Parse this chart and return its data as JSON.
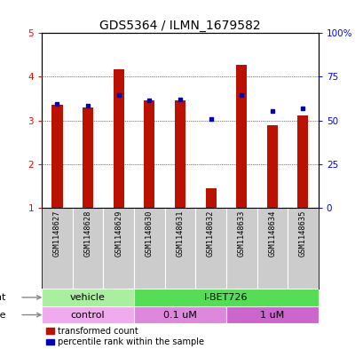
{
  "title": "GDS5364 / ILMN_1679582",
  "samples": [
    "GSM1148627",
    "GSM1148628",
    "GSM1148629",
    "GSM1148630",
    "GSM1148631",
    "GSM1148632",
    "GSM1148633",
    "GSM1148634",
    "GSM1148635"
  ],
  "red_values": [
    3.35,
    3.3,
    4.18,
    3.46,
    3.46,
    1.45,
    4.28,
    2.88,
    3.12
  ],
  "blue_values": [
    3.37,
    3.33,
    3.58,
    3.45,
    3.47,
    3.03,
    3.58,
    3.22,
    3.28
  ],
  "ylim_left": [
    1,
    5
  ],
  "ylim_right": [
    0,
    100
  ],
  "yticks_left": [
    1,
    2,
    3,
    4,
    5
  ],
  "yticks_right": [
    0,
    25,
    50,
    75,
    100
  ],
  "ytick_labels_right": [
    "0",
    "25",
    "50",
    "75",
    "100%"
  ],
  "agent_groups": [
    {
      "label": "vehicle",
      "start": 0,
      "end": 3,
      "color": "#aaeea0"
    },
    {
      "label": "I-BET726",
      "start": 3,
      "end": 9,
      "color": "#55dd55"
    }
  ],
  "dose_groups": [
    {
      "label": "control",
      "start": 0,
      "end": 3,
      "color": "#f0aaee"
    },
    {
      "label": "0.1 uM",
      "start": 3,
      "end": 6,
      "color": "#dd88dd"
    },
    {
      "label": "1 uM",
      "start": 6,
      "end": 9,
      "color": "#cc66cc"
    }
  ],
  "red_color": "#bb1100",
  "blue_color": "#0000bb",
  "bar_width": 0.35,
  "background_color": "#ffffff",
  "title_fontsize": 10,
  "axis_fontsize": 7.5,
  "label_fontsize": 8,
  "tick_label_fontsize": 7,
  "sample_fontsize": 6.2
}
